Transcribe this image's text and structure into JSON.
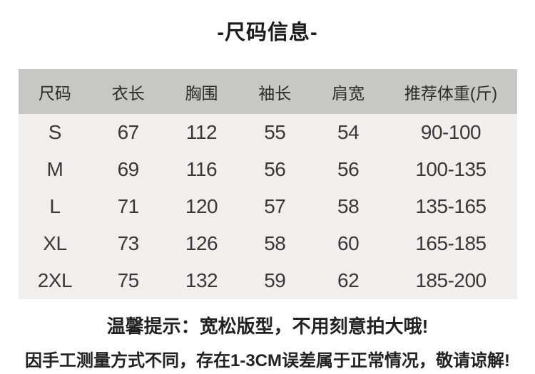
{
  "page": {
    "title": "-尺码信息-",
    "background": "#ffffff"
  },
  "colors": {
    "header_row_bg": "#c7c7c6",
    "body_row_bg": "#f0efee",
    "title_text": "#1b1b1b",
    "body_text": "#38383a",
    "note_text": "#222222"
  },
  "chart_data": {
    "type": "table",
    "title": "-尺码信息-",
    "columns": [
      "尺码",
      "衣长",
      "胸围",
      "袖长",
      "肩宽",
      "推荐体重(斤)"
    ],
    "rows": [
      [
        "S",
        "67",
        "112",
        "55",
        "54",
        "90-100"
      ],
      [
        "M",
        "69",
        "116",
        "56",
        "56",
        "100-135"
      ],
      [
        "L",
        "71",
        "120",
        "57",
        "58",
        "135-165"
      ],
      [
        "XL",
        "73",
        "126",
        "58",
        "60",
        "165-185"
      ],
      [
        "2XL",
        "75",
        "132",
        "59",
        "62",
        "185-200"
      ]
    ],
    "layout_hints": {
      "header_background": "#c7c7c6",
      "body_background": "#f0efee",
      "grid": "off",
      "last_column_wider": true
    }
  },
  "notes": {
    "tip": "温馨提示：宽松版型，不用刻意拍大哦!",
    "disclaimer": "因手工测量方式不同，存在1-3CM误差属于正常情况，敬请谅解!"
  }
}
